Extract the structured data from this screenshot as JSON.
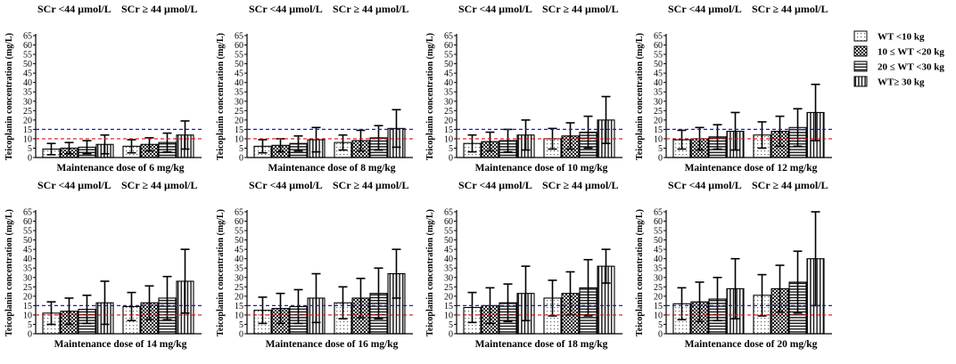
{
  "chart_data": {
    "type": "bar",
    "y_axis": {
      "label": "Teicoplanin concentration (mg/L)",
      "ylim": [
        0,
        65
      ],
      "ticks": [
        "0",
        "5",
        "10",
        "15",
        "20",
        "25",
        "30",
        "35",
        "40",
        "45",
        "50",
        "55",
        "60",
        "65"
      ]
    },
    "groups": [
      "SCr <44 μmol/L",
      "SCr ≥ 44 μmol/L"
    ],
    "reference_lines": [
      {
        "name": "upper target",
        "value": 15,
        "color": "#1a1acc"
      },
      {
        "name": "lower target",
        "value": 10,
        "color": "#dd1111"
      }
    ],
    "series": [
      {
        "name": "WT <10 kg",
        "pattern": "dots"
      },
      {
        "name": "10 ≤  WT <20 kg",
        "pattern": "checker"
      },
      {
        "name": "20 ≤  WT <30 kg",
        "pattern": "hlines"
      },
      {
        "name": "WT≥ 30 kg",
        "pattern": "vlines"
      }
    ],
    "panels": [
      {
        "xlabel": "Maintenance dose of 6 mg/kg",
        "values": [
          [
            4.5,
            5.0,
            5.5,
            7.0
          ],
          [
            6.0,
            7.0,
            8.0,
            12.0
          ]
        ],
        "err": [
          [
            3,
            3,
            3.5,
            5
          ],
          [
            3.5,
            3.5,
            5,
            7.5
          ]
        ]
      },
      {
        "xlabel": "Maintenance dose of 8 mg/kg",
        "values": [
          [
            6.0,
            6.5,
            7.5,
            9.5
          ],
          [
            8.0,
            9.0,
            10.5,
            15.5
          ]
        ],
        "err": [
          [
            3.5,
            3.5,
            4,
            6.5
          ],
          [
            4,
            5.5,
            6.5,
            10
          ]
        ]
      },
      {
        "xlabel": "Maintenance dose of 10 mg/kg",
        "values": [
          [
            7.5,
            8.5,
            9.0,
            12.0
          ],
          [
            10.0,
            11.5,
            13.5,
            20.0
          ]
        ],
        "err": [
          [
            4.5,
            5,
            6,
            8
          ],
          [
            5.5,
            7,
            8.5,
            12.5
          ]
        ]
      },
      {
        "xlabel": "Maintenance dose of 12 mg/kg",
        "values": [
          [
            9.5,
            10.0,
            11.0,
            14.0
          ],
          [
            12.0,
            14.0,
            16.0,
            24.0
          ]
        ],
        "err": [
          [
            5,
            6,
            6.5,
            10
          ],
          [
            7,
            8,
            10,
            15
          ]
        ]
      },
      {
        "xlabel": "Maintenance dose of 14 mg/kg",
        "values": [
          [
            11.0,
            12.0,
            13.0,
            16.5
          ],
          [
            14.5,
            16.5,
            19.0,
            28.0
          ]
        ],
        "err": [
          [
            6,
            7,
            7.5,
            11.5
          ],
          [
            7.5,
            9,
            11.5,
            17
          ]
        ]
      },
      {
        "xlabel": "Maintenance dose of 16 mg/kg",
        "values": [
          [
            12.5,
            13.5,
            14.5,
            19.0
          ],
          [
            16.5,
            19.0,
            21.5,
            32.0
          ]
        ],
        "err": [
          [
            7,
            8,
            9,
            13
          ],
          [
            8.5,
            10.5,
            13.5,
            13
          ]
        ]
      },
      {
        "xlabel": "Maintenance dose of 18 mg/kg",
        "values": [
          [
            14.0,
            15.0,
            16.5,
            21.5
          ],
          [
            19.0,
            21.5,
            24.5,
            36.0
          ]
        ],
        "err": [
          [
            8,
            9.5,
            10,
            14.5
          ],
          [
            9.5,
            11.5,
            15,
            9
          ]
        ]
      },
      {
        "xlabel": "Maintenance dose of 20 mg/kg",
        "values": [
          [
            16.0,
            17.0,
            18.5,
            24.0
          ],
          [
            20.5,
            24.0,
            27.5,
            40.0
          ]
        ],
        "err": [
          [
            8.5,
            10.5,
            11.5,
            16
          ],
          [
            11,
            12.5,
            16.5,
            25
          ]
        ]
      }
    ]
  }
}
